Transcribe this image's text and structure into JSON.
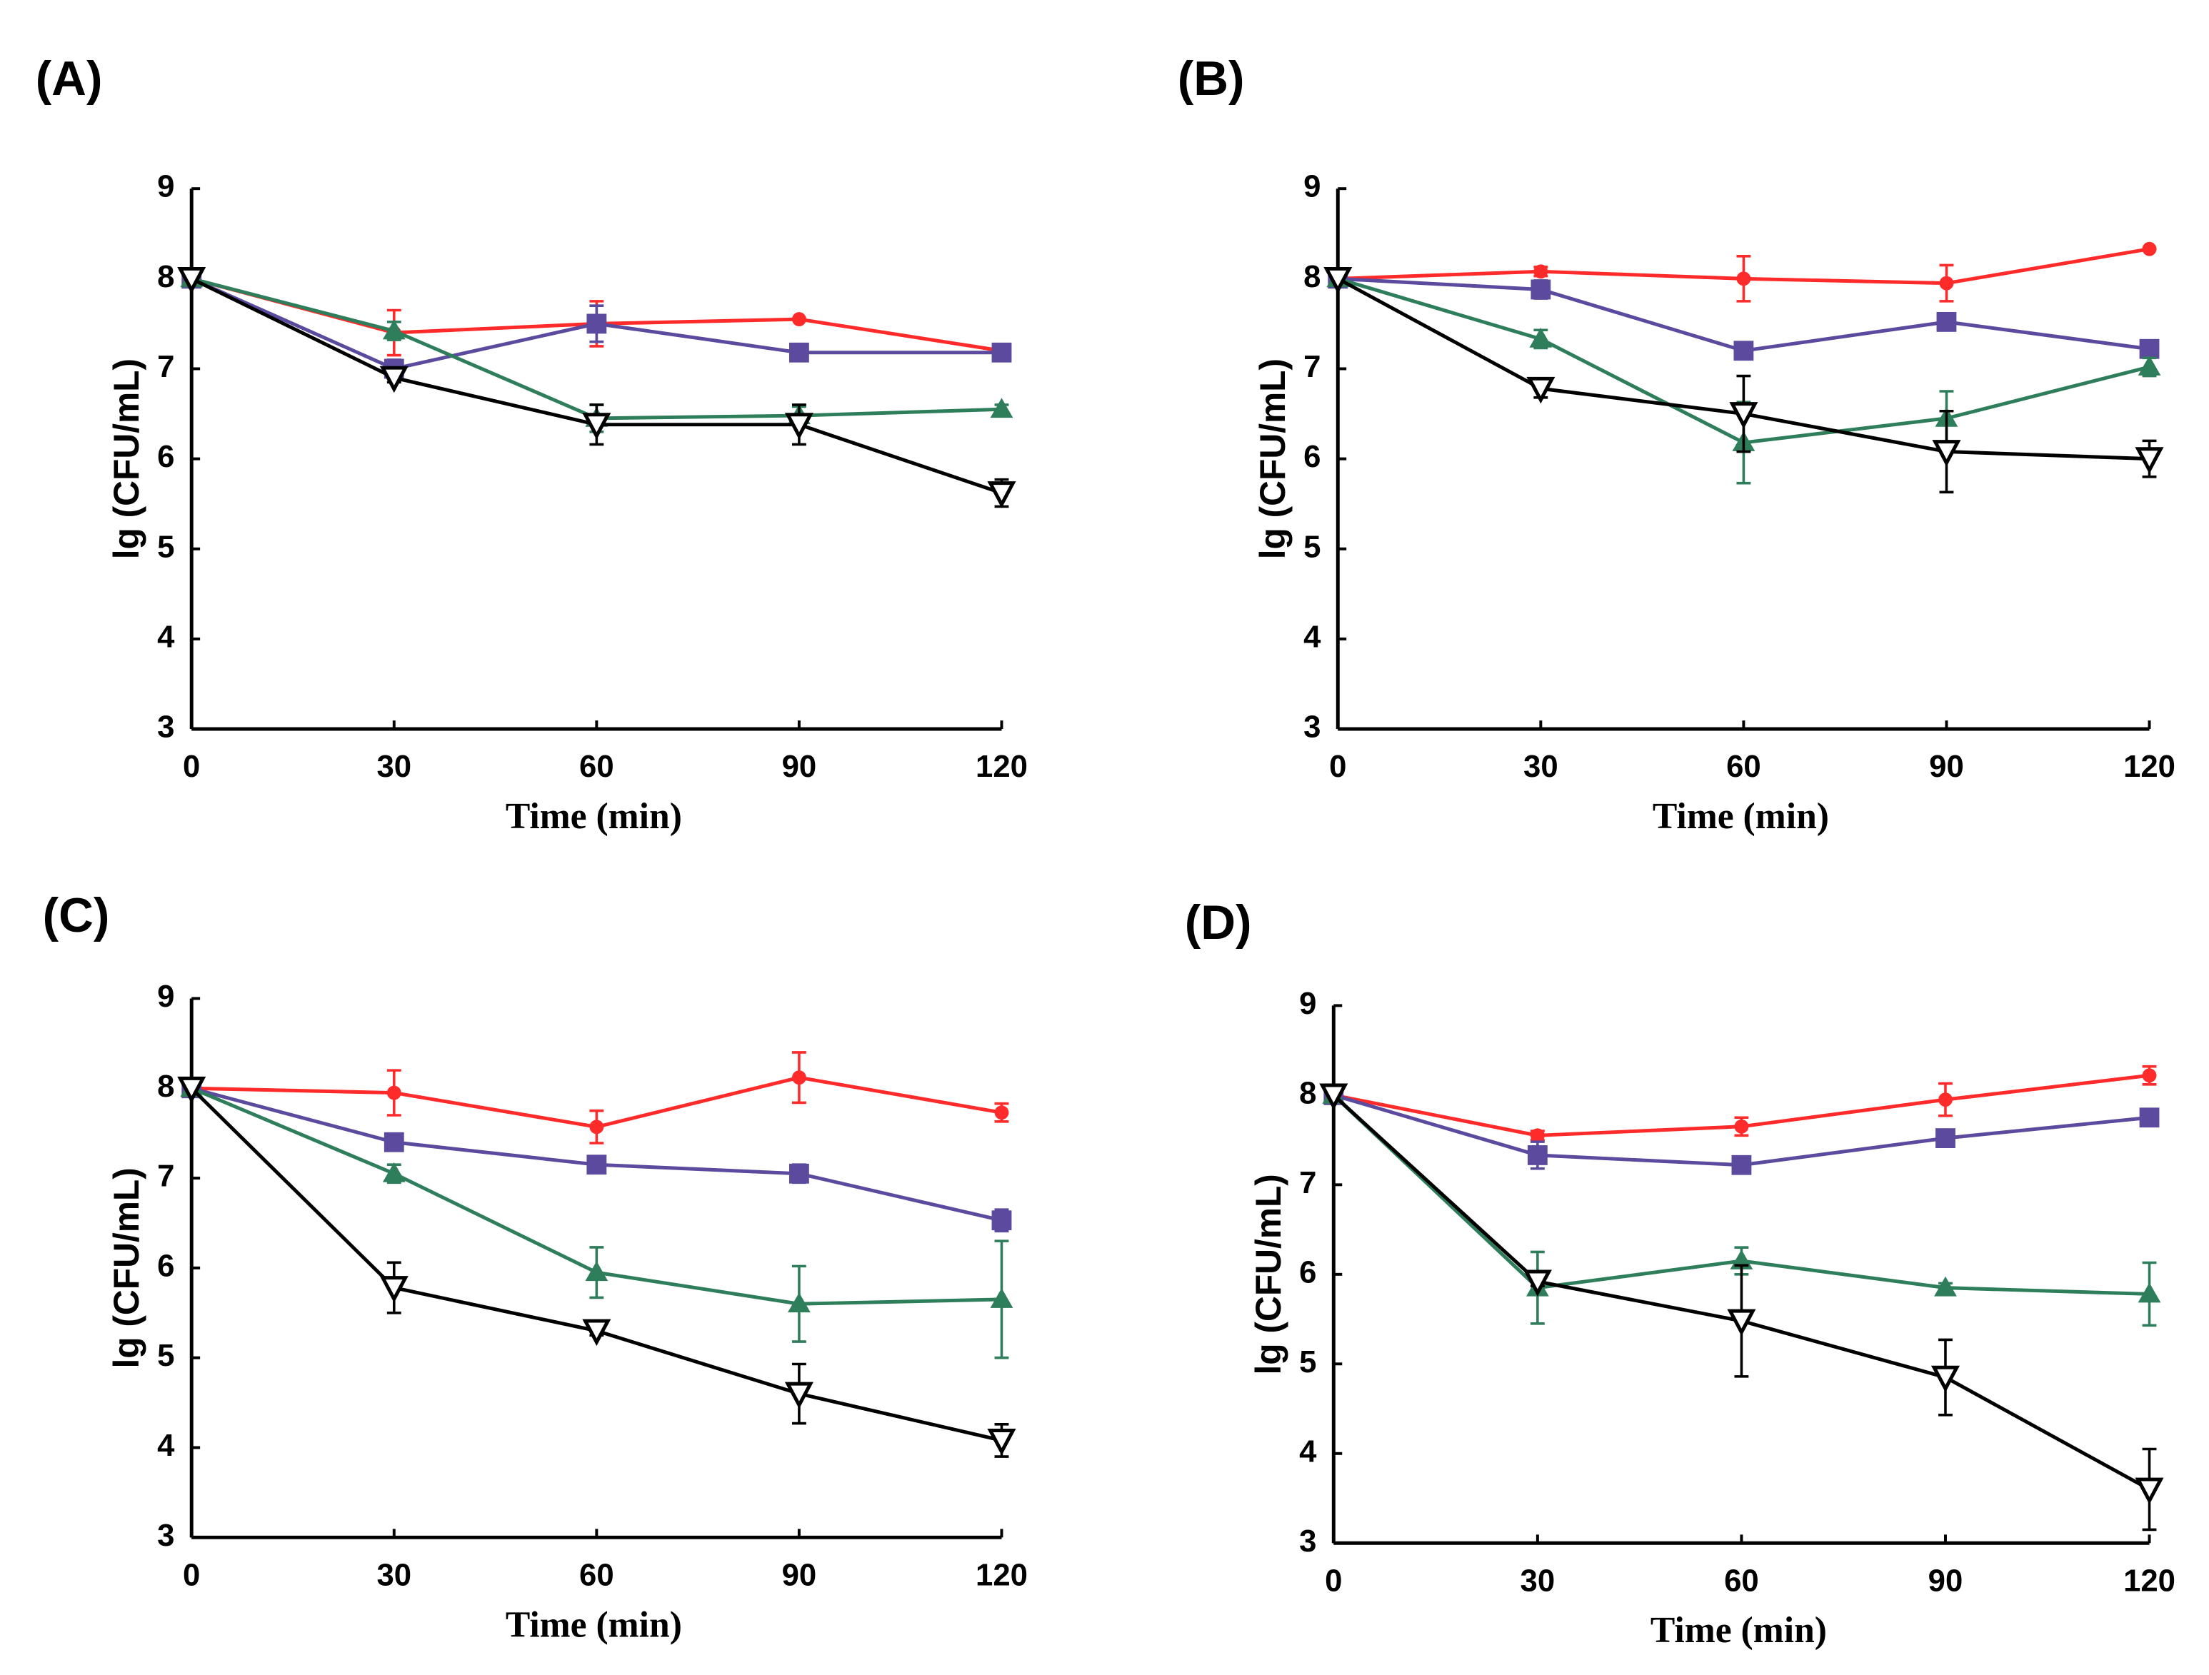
{
  "chart_data": [
    {
      "type": "line",
      "panel_label": "(A)",
      "y_label": "lg (CFU/mL)",
      "x_label": "Time (min)",
      "x": [
        0,
        30,
        60,
        90,
        120
      ],
      "xlim": [
        0,
        120
      ],
      "xticks": [
        0,
        30,
        60,
        90,
        120
      ],
      "ylim": [
        3,
        9
      ],
      "yticks": [
        3,
        4,
        5,
        6,
        7,
        8,
        9
      ],
      "series": [
        {
          "color": "#ff2a2a",
          "marker": "circle",
          "values": [
            8,
            7.4,
            7.5,
            7.55,
            7.2
          ],
          "errors": [
            0,
            0.25,
            0.25,
            0,
            0
          ]
        },
        {
          "color": "#5b4a9e",
          "marker": "square",
          "values": [
            8,
            7.0,
            7.5,
            7.18,
            7.18
          ],
          "errors": [
            0,
            0.1,
            0.2,
            0.05,
            0.05
          ]
        },
        {
          "color": "#2e7d5b",
          "marker": "triangle",
          "values": [
            8,
            7.42,
            6.45,
            6.48,
            6.55
          ],
          "errors": [
            0,
            0.1,
            0.15,
            0.1,
            0.05
          ]
        },
        {
          "color": "#000000",
          "marker": "open-down-triangle",
          "values": [
            8,
            6.9,
            6.38,
            6.38,
            5.62
          ],
          "errors": [
            0,
            0.05,
            0.22,
            0.22,
            0.15
          ]
        }
      ]
    },
    {
      "type": "line",
      "panel_label": "(B)",
      "y_label": "lg (CFU/mL)",
      "x_label": "Time (min)",
      "x": [
        0,
        30,
        60,
        90,
        120
      ],
      "xlim": [
        0,
        120
      ],
      "xticks": [
        0,
        30,
        60,
        90,
        120
      ],
      "ylim": [
        3,
        9
      ],
      "yticks": [
        3,
        4,
        5,
        6,
        7,
        8,
        9
      ],
      "series": [
        {
          "color": "#ff2a2a",
          "marker": "circle",
          "values": [
            8,
            8.08,
            8.0,
            7.95,
            8.33
          ],
          "errors": [
            0,
            0.05,
            0.25,
            0.2,
            0
          ]
        },
        {
          "color": "#5b4a9e",
          "marker": "square",
          "values": [
            8,
            7.88,
            7.2,
            7.52,
            7.22
          ],
          "errors": [
            0,
            0.1,
            0.08,
            0.08,
            0.05
          ]
        },
        {
          "color": "#2e7d5b",
          "marker": "triangle",
          "values": [
            8,
            7.33,
            6.18,
            6.45,
            7.02
          ],
          "errors": [
            0,
            0.1,
            0.45,
            0.3,
            0.1
          ]
        },
        {
          "color": "#000000",
          "marker": "open-down-triangle",
          "values": [
            8,
            6.78,
            6.5,
            6.08,
            6.0
          ],
          "errors": [
            0,
            0.1,
            0.42,
            0.45,
            0.2
          ]
        }
      ]
    },
    {
      "type": "line",
      "panel_label": "(C)",
      "y_label": "lg (CFU/mL)",
      "x_label": "Time (min)",
      "x": [
        0,
        30,
        60,
        90,
        120
      ],
      "xlim": [
        0,
        120
      ],
      "xticks": [
        0,
        30,
        60,
        90,
        120
      ],
      "ylim": [
        3,
        9
      ],
      "yticks": [
        3,
        4,
        5,
        6,
        7,
        8,
        9
      ],
      "series": [
        {
          "color": "#ff2a2a",
          "marker": "circle",
          "values": [
            8,
            7.95,
            7.57,
            8.12,
            7.73
          ],
          "errors": [
            0,
            0.25,
            0.18,
            0.28,
            0.1
          ]
        },
        {
          "color": "#5b4a9e",
          "marker": "square",
          "values": [
            8,
            7.4,
            7.15,
            7.05,
            6.53
          ],
          "errors": [
            0,
            0.05,
            0.05,
            0.1,
            0.12
          ]
        },
        {
          "color": "#2e7d5b",
          "marker": "triangle",
          "values": [
            8,
            7.05,
            5.95,
            5.6,
            5.65
          ],
          "errors": [
            0,
            0.1,
            0.28,
            0.42,
            0.65
          ]
        },
        {
          "color": "#000000",
          "marker": "open-down-triangle",
          "values": [
            8,
            5.78,
            5.3,
            4.6,
            4.08
          ],
          "errors": [
            0,
            0.28,
            0.05,
            0.33,
            0.18
          ]
        }
      ]
    },
    {
      "type": "line",
      "panel_label": "(D)",
      "y_label": "lg (CFU/mL)",
      "x_label": "Time (min)",
      "x": [
        0,
        30,
        60,
        90,
        120
      ],
      "xlim": [
        0,
        120
      ],
      "xticks": [
        0,
        30,
        60,
        90,
        120
      ],
      "ylim": [
        3,
        9
      ],
      "yticks": [
        3,
        4,
        5,
        6,
        7,
        8,
        9
      ],
      "series": [
        {
          "color": "#ff2a2a",
          "marker": "circle",
          "values": [
            8,
            7.55,
            7.65,
            7.95,
            8.22
          ],
          "errors": [
            0,
            0.05,
            0.1,
            0.18,
            0.1
          ]
        },
        {
          "color": "#5b4a9e",
          "marker": "square",
          "values": [
            8,
            7.33,
            7.22,
            7.52,
            7.75
          ],
          "errors": [
            0,
            0.15,
            0.05,
            0.05,
            0.05
          ]
        },
        {
          "color": "#2e7d5b",
          "marker": "triangle",
          "values": [
            8,
            5.85,
            6.15,
            5.85,
            5.78
          ],
          "errors": [
            0,
            0.4,
            0.15,
            0.05,
            0.35
          ]
        },
        {
          "color": "#000000",
          "marker": "open-down-triangle",
          "values": [
            8,
            5.92,
            5.48,
            4.85,
            3.6
          ],
          "errors": [
            0,
            0.05,
            0.62,
            0.42,
            0.45
          ]
        }
      ]
    }
  ]
}
